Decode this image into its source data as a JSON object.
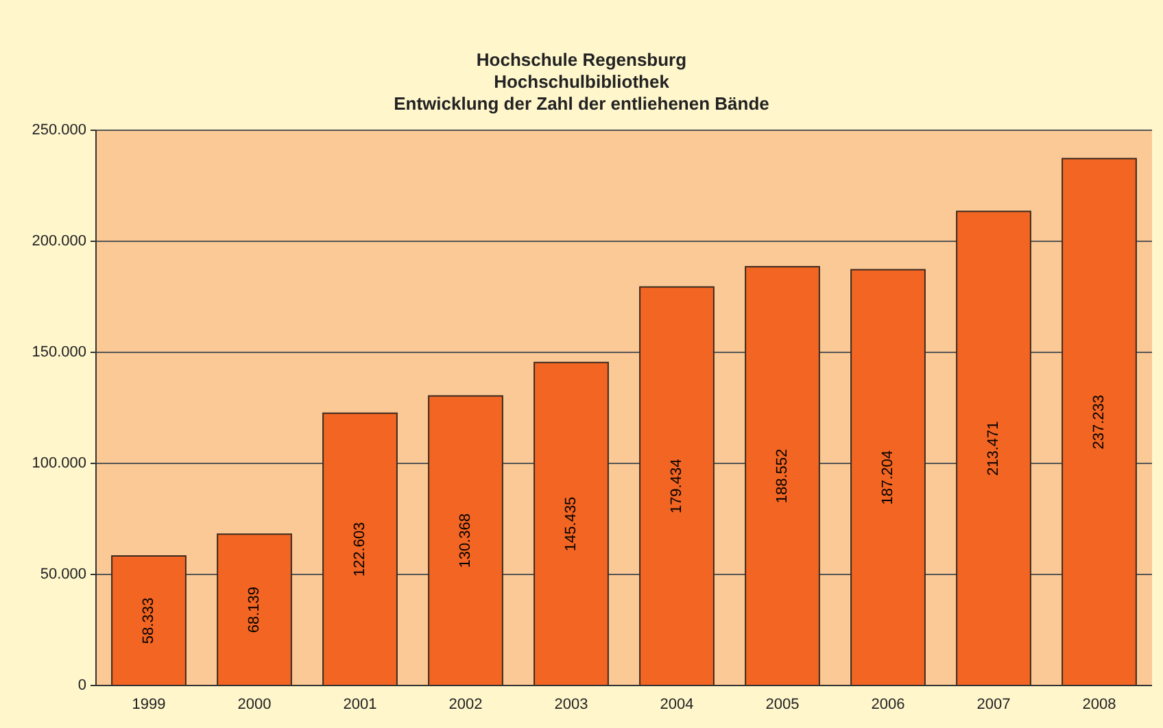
{
  "chart_data": {
    "type": "bar",
    "title": "Hochschule Regensburg\nHochschulbibliothek\nEntwicklung der Zahl der entliehenen Bände",
    "categories": [
      "1999",
      "2000",
      "2001",
      "2002",
      "2003",
      "2004",
      "2005",
      "2006",
      "2007",
      "2008"
    ],
    "values": [
      58333,
      68139,
      122603,
      130368,
      145435,
      179434,
      188552,
      187204,
      213471,
      237233
    ],
    "value_labels": [
      "58.333",
      "68.139",
      "122.603",
      "130.368",
      "145.435",
      "179.434",
      "188.552",
      "187.204",
      "213.471",
      "237.233"
    ],
    "color": "#f26522",
    "ylim": [
      0,
      250000
    ],
    "yticks": [
      {
        "value": 0,
        "label": "0"
      },
      {
        "value": 50000,
        "label": "50.000"
      },
      {
        "value": 100000,
        "label": "100.000"
      },
      {
        "value": 150000,
        "label": "150.000"
      },
      {
        "value": 200000,
        "label": "200.000"
      },
      {
        "value": 250000,
        "label": "250.000"
      }
    ],
    "grid": "y"
  }
}
